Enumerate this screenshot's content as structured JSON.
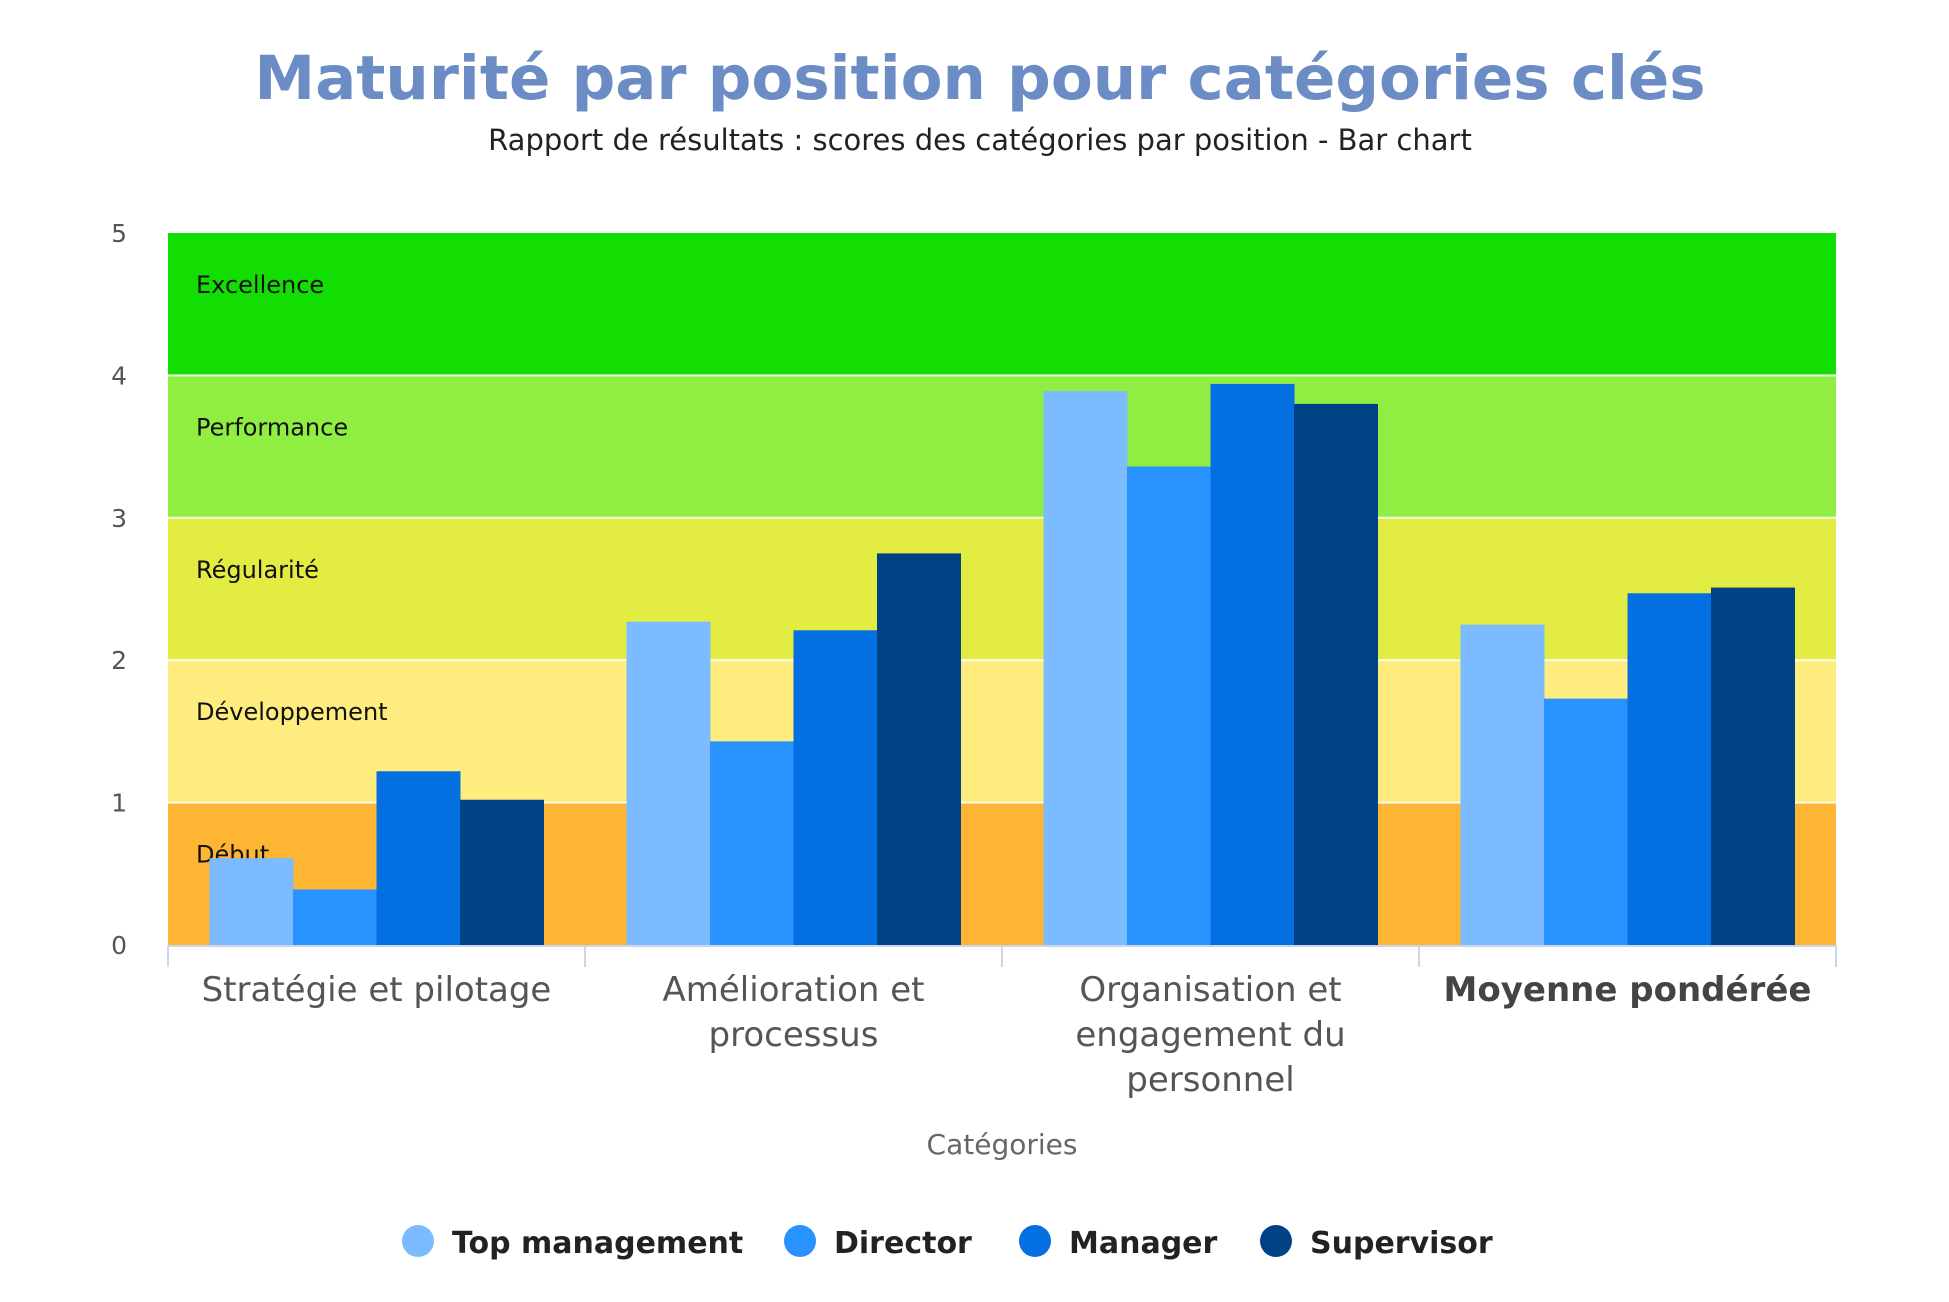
{
  "chart_data": {
    "type": "bar",
    "title": "Maturité par position pour catégories clés",
    "subtitle": "Rapport de résultats : scores des catégories par position - Bar chart",
    "xlabel": "Catégories",
    "ylabel": "",
    "ylim": [
      0,
      5
    ],
    "yticks": [
      "0",
      "1",
      "2",
      "3",
      "4",
      "5"
    ],
    "categories": [
      [
        "Stratégie et pilotage"
      ],
      [
        "Amélioration et",
        "processus"
      ],
      [
        "Organisation et",
        "engagement du",
        "personnel"
      ],
      [
        "Moyenne pondérée"
      ]
    ],
    "bold_categories": [
      3
    ],
    "series": [
      {
        "name": "Top management",
        "color": "#7cbbff",
        "values": [
          0.61,
          2.27,
          3.89,
          2.25
        ]
      },
      {
        "name": "Director",
        "color": "#2892ff",
        "values": [
          0.39,
          1.43,
          3.36,
          1.73
        ]
      },
      {
        "name": "Manager",
        "color": "#036fe0",
        "values": [
          1.22,
          2.21,
          3.94,
          2.47
        ]
      },
      {
        "name": "Supervisor",
        "color": "#014185",
        "values": [
          1.02,
          2.75,
          3.8,
          2.51
        ]
      }
    ],
    "bands": [
      {
        "label": "Début",
        "from": 0,
        "to": 1,
        "color": "#feb534"
      },
      {
        "label": "Développement",
        "from": 1,
        "to": 2,
        "color": "#feec7e"
      },
      {
        "label": "Régularité",
        "from": 2,
        "to": 3,
        "color": "#e2ec42"
      },
      {
        "label": "Performance",
        "from": 3,
        "to": 4,
        "color": "#90ee43"
      },
      {
        "label": "Excellence",
        "from": 4,
        "to": 5,
        "color": "#12de04"
      }
    ],
    "legend_position": "bottom",
    "grid": false
  }
}
